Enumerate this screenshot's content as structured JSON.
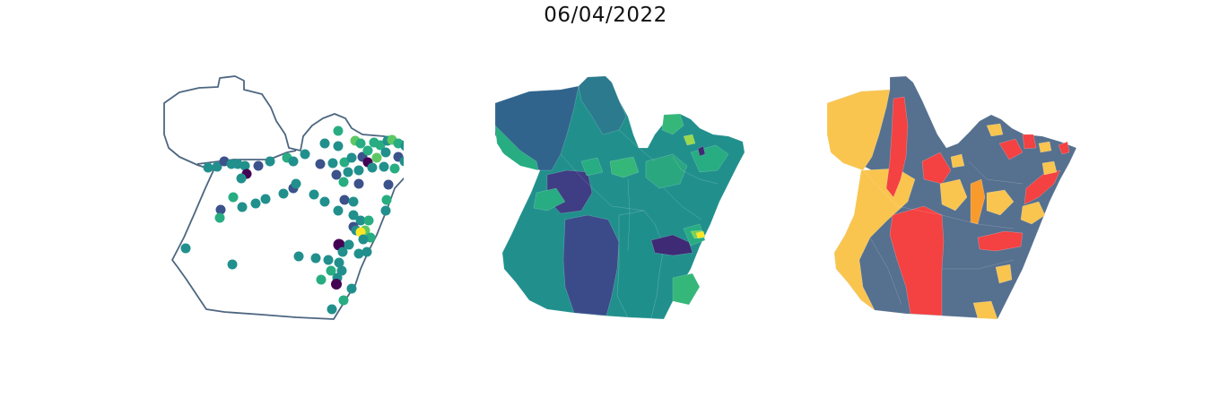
{
  "title": "06/04/2022",
  "colors": {
    "outline": "#4d6680",
    "viridis": [
      "#440154",
      "#3b528b",
      "#21908d",
      "#27ad81",
      "#5dc863",
      "#fde725"
    ],
    "categories": {
      "yellow": "#f9c54f",
      "red": "#f44141",
      "slate": "#56708f",
      "orange": "#f89b2c"
    }
  },
  "maps": [
    {
      "name": "points-map",
      "style": "scatter"
    },
    {
      "name": "viridis-choropleth",
      "style": "choropleth"
    },
    {
      "name": "category-choropleth",
      "style": "choropleth"
    }
  ]
}
